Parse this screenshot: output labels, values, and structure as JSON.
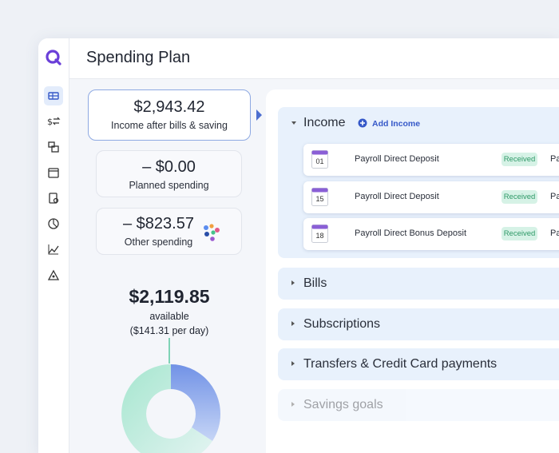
{
  "header": {
    "title": "Spending Plan"
  },
  "summary": [
    {
      "amount": "$2,943.42",
      "label": "Income after bills & saving"
    },
    {
      "amount": "– $0.00",
      "label": "Planned spending"
    },
    {
      "amount": "– $823.57",
      "label": "Other spending"
    }
  ],
  "available": {
    "amount": "$2,119.85",
    "label": "available",
    "per_day": "($141.31 per day)"
  },
  "income": {
    "title": "Income",
    "action": "Add Income",
    "items": [
      {
        "day": "01",
        "name": "Payroll Direct Deposit",
        "status": "Received",
        "extra": "Pa"
      },
      {
        "day": "15",
        "name": "Payroll Direct Deposit",
        "status": "Received",
        "extra": "Pa"
      },
      {
        "day": "18",
        "name": "Payroll Direct Bonus Deposit",
        "status": "Received",
        "extra": "Pa"
      }
    ]
  },
  "sections": [
    "Bills",
    "Subscriptions",
    "Transfers & Credit Card payments",
    "Savings goals"
  ]
}
